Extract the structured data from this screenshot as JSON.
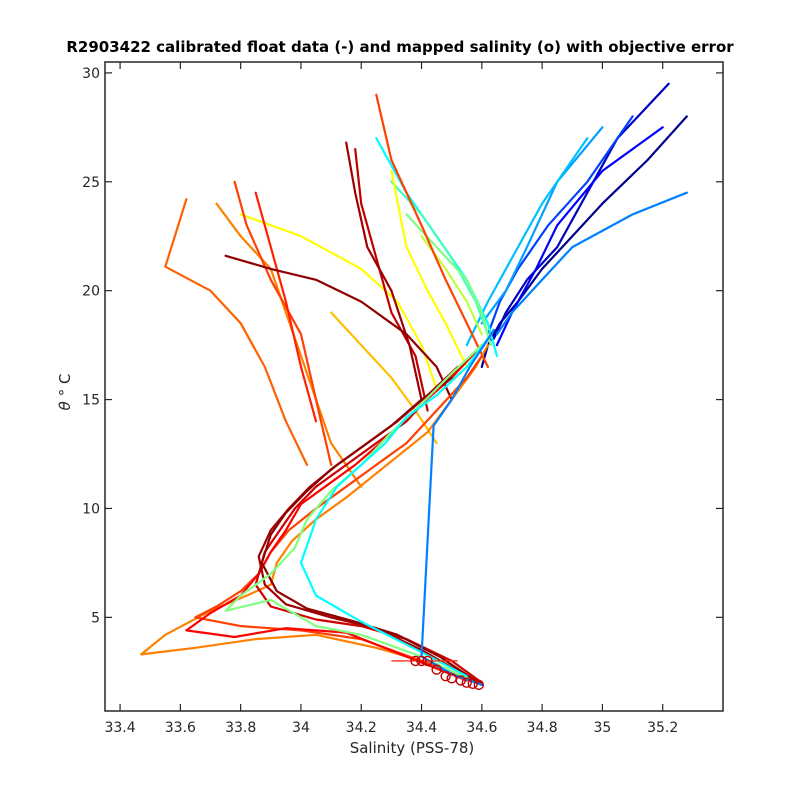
{
  "chart_data": {
    "type": "line",
    "title": "R2903422 calibrated float data (-) and mapped salinity (o) with objective error",
    "xlabel": "Salinity (PSS-78)",
    "ylabel_symbol": "θ",
    "ylabel_unit": "° C",
    "xlim": [
      33.35,
      35.4
    ],
    "ylim": [
      0.7,
      30.5
    ],
    "x_ticks": [
      "33.4",
      "33.6",
      "33.8",
      "34",
      "34.2",
      "34.4",
      "34.6",
      "34.8",
      "35",
      "35.2"
    ],
    "x_tick_values": [
      33.4,
      33.6,
      33.8,
      34.0,
      34.2,
      34.4,
      34.6,
      34.8,
      35.0,
      35.2
    ],
    "y_ticks": [
      "5",
      "10",
      "15",
      "20",
      "25",
      "30"
    ],
    "y_tick_values": [
      5,
      10,
      15,
      20,
      25,
      30
    ],
    "colormap": "jet",
    "grid": false,
    "series": [
      {
        "color": "#00008f",
        "x": [
          35.28,
          35.15,
          35.0,
          34.9,
          34.8,
          34.72,
          34.66,
          34.62,
          34.6
        ],
        "y": [
          28.0,
          26.0,
          24.0,
          22.5,
          21.0,
          19.5,
          18.5,
          17.5,
          16.5
        ]
      },
      {
        "color": "#0000c0",
        "x": [
          35.22,
          35.05,
          34.95,
          34.85,
          34.75,
          34.68,
          34.64
        ],
        "y": [
          29.5,
          27.0,
          24.5,
          22.0,
          20.5,
          19.0,
          17.8
        ]
      },
      {
        "color": "#0000ff",
        "x": [
          35.2,
          35.0,
          34.85,
          34.78,
          34.7,
          34.65
        ],
        "y": [
          27.5,
          25.5,
          23.0,
          21.0,
          19.0,
          17.5
        ]
      },
      {
        "color": "#0040ff",
        "x": [
          35.1,
          34.95,
          34.82,
          34.72,
          34.66,
          34.62
        ],
        "y": [
          28.0,
          25.0,
          23.0,
          21.0,
          19.5,
          18.0
        ]
      },
      {
        "color": "#0080ff",
        "x": [
          35.28,
          35.1,
          34.9,
          34.8,
          34.7,
          34.65
        ],
        "y": [
          24.5,
          23.5,
          22.0,
          20.5,
          19.0,
          18.0
        ]
      },
      {
        "color": "#00a0ff",
        "x": [
          35.0,
          34.85,
          34.75,
          34.68,
          34.6
        ],
        "y": [
          27.5,
          25.0,
          22.0,
          20.0,
          18.5
        ]
      },
      {
        "color": "#00c0ff",
        "x": [
          34.95,
          34.8,
          34.7,
          34.62,
          34.55
        ],
        "y": [
          27.0,
          24.0,
          21.5,
          19.5,
          17.5
        ]
      },
      {
        "color": "#00ffff",
        "x": [
          34.25,
          34.35,
          34.45,
          34.55,
          34.62,
          34.65
        ],
        "y": [
          27.0,
          24.5,
          22.5,
          20.5,
          18.5,
          17.0
        ]
      },
      {
        "color": "#40ffbf",
        "x": [
          34.3,
          34.4,
          34.5,
          34.58,
          34.62
        ],
        "y": [
          25.0,
          23.5,
          21.5,
          19.5,
          18.0
        ]
      },
      {
        "color": "#80ff80",
        "x": [
          34.35,
          34.45,
          34.55,
          34.6,
          34.63
        ],
        "y": [
          23.5,
          22.0,
          20.5,
          19.0,
          17.5
        ]
      },
      {
        "color": "#bfff40",
        "x": [
          34.4,
          34.48,
          34.55,
          34.6
        ],
        "y": [
          22.5,
          21.0,
          19.5,
          18.0
        ]
      },
      {
        "color": "#ffff00",
        "x": [
          34.3,
          34.35,
          34.42,
          34.48,
          34.55
        ],
        "y": [
          25.5,
          22.0,
          20.0,
          18.5,
          16.5
        ]
      },
      {
        "color": "#ffff00",
        "x": [
          33.8,
          34.0,
          34.2,
          34.32,
          34.4,
          34.45
        ],
        "y": [
          23.5,
          22.5,
          21.0,
          19.5,
          17.5,
          15.5
        ]
      },
      {
        "color": "#ffbf00",
        "x": [
          34.1,
          34.2,
          34.3,
          34.38,
          34.45
        ],
        "y": [
          19.0,
          17.5,
          16.0,
          14.5,
          13.0
        ]
      },
      {
        "color": "#ff8000",
        "x": [
          33.72,
          33.8,
          33.9,
          33.95,
          34.0,
          34.05,
          34.1,
          34.2
        ],
        "y": [
          24.0,
          22.5,
          21.0,
          19.0,
          17.0,
          15.0,
          13.0,
          11.0
        ]
      },
      {
        "color": "#ff6000",
        "x": [
          33.62,
          33.55,
          33.7,
          33.8,
          33.88,
          33.95,
          34.02
        ],
        "y": [
          24.2,
          21.1,
          20.0,
          18.5,
          16.5,
          14.0,
          12.0
        ]
      },
      {
        "color": "#ff4000",
        "x": [
          33.78,
          33.82,
          33.9,
          34.0,
          34.05,
          34.1
        ],
        "y": [
          25.0,
          23.0,
          20.5,
          18.0,
          15.0,
          12.0
        ]
      },
      {
        "color": "#ff4000",
        "x": [
          34.25,
          34.3,
          34.4,
          34.48,
          34.55,
          34.62
        ],
        "y": [
          29.0,
          26.0,
          23.0,
          20.5,
          18.5,
          16.5
        ]
      },
      {
        "color": "#ff2000",
        "x": [
          33.85,
          33.9,
          33.95,
          34.0,
          34.05
        ],
        "y": [
          24.5,
          22.0,
          19.5,
          16.5,
          14.0
        ]
      },
      {
        "color": "#c00000",
        "x": [
          34.18,
          34.2,
          34.25,
          34.3,
          34.38,
          34.42
        ],
        "y": [
          26.5,
          24.0,
          21.5,
          19.0,
          17.0,
          14.5
        ]
      },
      {
        "color": "#a00000",
        "x": [
          34.15,
          34.18,
          34.22,
          34.3,
          34.36,
          34.4
        ],
        "y": [
          26.8,
          24.5,
          22.0,
          20.0,
          17.5,
          15.0
        ]
      },
      {
        "color": "#8f0000",
        "x": [
          33.75,
          33.9,
          34.05,
          34.2,
          34.35,
          34.45,
          34.5
        ],
        "y": [
          21.6,
          21.0,
          20.5,
          19.5,
          18.0,
          16.5,
          15.0
        ]
      },
      {
        "color": "#ff8000",
        "x": [
          34.62,
          34.58,
          34.5,
          34.42,
          34.33,
          34.24,
          34.15,
          34.05,
          33.97,
          33.92,
          33.9,
          33.82,
          33.7,
          33.55,
          33.47,
          33.65,
          33.85,
          34.05,
          34.25,
          34.45,
          34.6
        ],
        "y": [
          17.5,
          16.5,
          15.0,
          13.5,
          12.5,
          11.5,
          10.5,
          9.5,
          8.5,
          7.5,
          6.5,
          6.0,
          5.3,
          4.2,
          3.3,
          3.6,
          4.0,
          4.2,
          3.6,
          2.8,
          1.9
        ]
      },
      {
        "color": "#ff4000",
        "x": [
          34.6,
          34.55,
          34.45,
          34.35,
          34.25,
          34.15,
          34.05,
          33.96,
          33.9,
          33.86,
          33.8,
          33.72,
          33.65,
          33.8,
          34.0,
          34.2,
          34.4,
          34.58
        ],
        "y": [
          17.0,
          16.0,
          14.5,
          13.0,
          12.0,
          11.0,
          10.0,
          9.0,
          8.0,
          7.0,
          6.2,
          5.5,
          5.0,
          4.6,
          4.4,
          4.0,
          3.0,
          2.0
        ]
      },
      {
        "color": "#ff0000",
        "x": [
          34.58,
          34.5,
          34.4,
          34.28,
          34.18,
          34.08,
          34.0,
          33.95,
          33.9,
          33.86,
          33.8,
          33.7,
          33.62,
          33.78,
          33.95,
          34.15,
          34.35,
          34.55
        ],
        "y": [
          17.2,
          16.0,
          14.8,
          13.2,
          12.0,
          11.0,
          10.2,
          9.0,
          8.0,
          7.0,
          6.0,
          5.2,
          4.4,
          4.1,
          4.5,
          4.3,
          3.2,
          2.1
        ]
      },
      {
        "color": "#d00000",
        "x": [
          34.55,
          34.45,
          34.35,
          34.25,
          34.15,
          34.05,
          33.98,
          33.93,
          33.88,
          33.85,
          33.9,
          34.05,
          34.2,
          34.35,
          34.5,
          34.6
        ],
        "y": [
          16.8,
          15.5,
          14.0,
          13.0,
          12.0,
          11.0,
          10.0,
          9.0,
          8.0,
          6.5,
          5.5,
          4.9,
          4.6,
          4.0,
          3.0,
          2.0
        ]
      },
      {
        "color": "#a00000",
        "x": [
          34.52,
          34.42,
          34.32,
          34.22,
          34.12,
          34.03,
          33.96,
          33.9,
          33.86,
          33.88,
          33.95,
          34.1,
          34.25,
          34.4,
          34.55
        ],
        "y": [
          16.5,
          15.2,
          14.0,
          13.0,
          12.0,
          11.0,
          10.0,
          9.0,
          7.8,
          6.5,
          5.6,
          5.0,
          4.5,
          3.5,
          2.3
        ]
      },
      {
        "color": "#8f0000",
        "x": [
          34.5,
          34.4,
          34.3,
          34.2,
          34.1,
          34.02,
          33.95,
          33.9,
          33.87,
          33.92,
          34.02,
          34.18,
          34.32,
          34.46,
          34.6
        ],
        "y": [
          16.0,
          15.0,
          13.8,
          12.8,
          11.8,
          10.8,
          9.8,
          8.8,
          7.5,
          6.2,
          5.4,
          4.8,
          4.2,
          3.2,
          1.9
        ]
      },
      {
        "color": "#80ff80",
        "x": [
          34.6,
          34.5,
          34.4,
          34.3,
          34.2,
          34.1,
          34.02,
          33.98,
          33.9,
          33.8,
          33.75,
          33.9,
          34.05,
          34.2,
          34.4,
          34.55
        ],
        "y": [
          17.5,
          16.2,
          14.8,
          13.5,
          12.0,
          10.8,
          9.5,
          8.2,
          7.0,
          6.0,
          5.3,
          5.8,
          4.6,
          4.2,
          3.2,
          2.2
        ]
      },
      {
        "color": "#00ffff",
        "x": [
          34.62,
          34.55,
          34.45,
          34.35,
          34.28,
          34.2,
          34.12,
          34.05,
          34.0,
          34.05,
          34.2,
          34.4,
          34.55
        ],
        "y": [
          17.8,
          16.5,
          15.2,
          14.2,
          13.0,
          12.0,
          11.0,
          9.5,
          7.5,
          6.0,
          4.8,
          3.4,
          2.3
        ]
      },
      {
        "color": "#0080ff",
        "x": [
          34.64,
          34.56,
          34.5,
          34.44,
          34.4,
          34.5,
          34.6
        ],
        "y": [
          18.2,
          16.5,
          15.0,
          13.8,
          3.2,
          2.4,
          1.9
        ]
      }
    ],
    "mapped_points": {
      "color": "#c00000",
      "x": [
        34.38,
        34.4,
        34.42,
        34.45,
        34.48,
        34.5,
        34.53,
        34.55,
        34.57,
        34.59
      ],
      "y": [
        3.0,
        3.0,
        3.0,
        2.6,
        2.3,
        2.2,
        2.1,
        2.0,
        1.95,
        1.9
      ]
    },
    "error_bar": {
      "color": "#ff2000",
      "xmin": 34.3,
      "xmax": 34.52,
      "y": 3.0
    }
  }
}
